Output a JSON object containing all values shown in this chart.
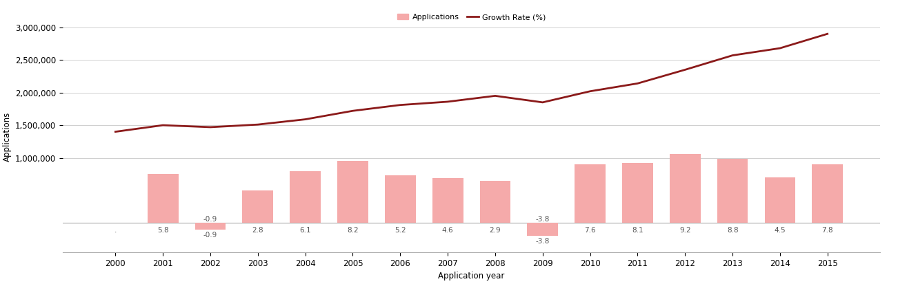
{
  "years": [
    2000,
    2001,
    2002,
    2003,
    2004,
    2005,
    2006,
    2007,
    2008,
    2009,
    2010,
    2011,
    2012,
    2013,
    2014,
    2015
  ],
  "applications": [
    1400000,
    1500000,
    1470000,
    1510000,
    1590000,
    1720000,
    1810000,
    1860000,
    1950000,
    1850000,
    2020000,
    2140000,
    2350000,
    2570000,
    2680000,
    2900000
  ],
  "growth_rates": [
    null,
    5.8,
    -0.9,
    2.8,
    6.1,
    8.2,
    5.2,
    4.6,
    2.9,
    -3.8,
    7.6,
    8.1,
    9.2,
    8.8,
    4.5,
    7.8
  ],
  "bar_display": [
    0,
    750000,
    -100000,
    500000,
    800000,
    950000,
    730000,
    690000,
    650000,
    -200000,
    900000,
    920000,
    1060000,
    990000,
    700000,
    900000
  ],
  "bar_color": "#f5aaaa",
  "line_color": "#8b1a1a",
  "ylabel": "Applications",
  "xlabel": "Application year",
  "legend_labels": [
    "Applications",
    "Growth Rate (%)"
  ],
  "yticks_main": [
    1000000,
    1500000,
    2000000,
    2500000,
    3000000
  ],
  "ytick_labels_main": [
    "1,000,000",
    "1,500,000",
    "2,000,000",
    "2,500,000",
    "3,000,000"
  ],
  "ylim": [
    -450000,
    3100000
  ],
  "bar_label_fontsize": 7.5,
  "axis_fontsize": 8.5,
  "legend_fontsize": 8,
  "background_color": "#ffffff",
  "grid_color": "#c8c8c8"
}
